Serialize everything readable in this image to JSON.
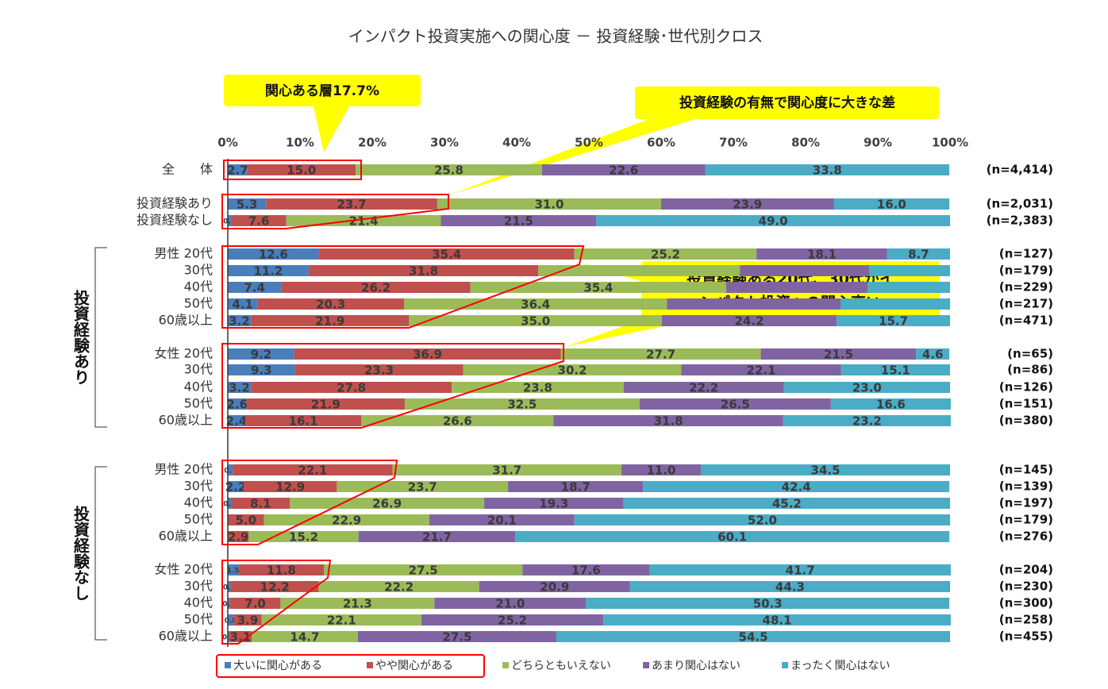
{
  "chart_data": {
    "type": "bar",
    "orientation": "horizontal",
    "stacked": true,
    "title": "インパクト投資実施への関心度 － 投資経験･世代別クロス",
    "categories": [
      "全　　体",
      "投資経験あり",
      "投資経験なし",
      "男性 20代",
      "30代",
      "40代",
      "50代",
      "60歳以上",
      "女性 20代",
      "30代",
      "40代",
      "50代",
      "60歳以上",
      "男性 20代",
      "30代",
      "40代",
      "50代",
      "60歳以上",
      "女性 20代",
      "30代",
      "40代",
      "50代",
      "60歳以上"
    ],
    "sample_sizes": [
      "(n=4,414)",
      "(n=2,031)",
      "(n=2,383)",
      "(n=127)",
      "(n=179)",
      "(n=229)",
      "(n=217)",
      "(n=471)",
      "(n=65)",
      "(n=86)",
      "(n=126)",
      "(n=151)",
      "(n=380)",
      "(n=145)",
      "(n=139)",
      "(n=197)",
      "(n=179)",
      "(n=276)",
      "(n=204)",
      "(n=230)",
      "(n=300)",
      "(n=258)",
      "(n=455)"
    ],
    "groups": [
      "投資経験あり",
      "投資経験なし"
    ],
    "annotations": {
      "interest": "関心ある層17.7%",
      "experience_gap": "投資経験の有無で関心度に大きな差",
      "young_investors": [
        "投資経験ある20代、30代がイ",
        "ンパクト投資への関心高い"
      ]
    },
    "xlim": [
      0,
      100
    ],
    "xticks": [
      {
        "value": 0,
        "label": "0%"
      },
      {
        "value": 10,
        "label": "10%"
      },
      {
        "value": 20,
        "label": "20%"
      },
      {
        "value": 30,
        "label": "30%"
      },
      {
        "value": 40,
        "label": "40%"
      },
      {
        "value": 50,
        "label": "50%"
      },
      {
        "value": 60,
        "label": "60%"
      },
      {
        "value": 70,
        "label": "70%"
      },
      {
        "value": 80,
        "label": "80%"
      },
      {
        "value": 90,
        "label": "90%"
      },
      {
        "value": 100,
        "label": "100%"
      }
    ],
    "legend": "bottom",
    "series": [
      {
        "name": "大いに関心がある",
        "color": "#4a7ebb",
        "values": [
          2.7,
          5.3,
          0.5,
          12.6,
          11.2,
          7.4,
          4.1,
          3.2,
          9.2,
          9.3,
          3.2,
          2.6,
          2.4,
          0.7,
          2.2,
          0.5,
          0,
          0,
          1.5,
          0.4,
          0.3,
          0.8,
          0.2
        ],
        "value_labels": [
          "2.7",
          "5.3",
          "0.5",
          "12.6",
          "11.2",
          "7.4",
          "4.1",
          "3.2",
          "9.2",
          "9.3",
          "3.2",
          "2.6",
          "2.4",
          "0.7",
          "2.2",
          "0.5",
          null,
          null,
          "1.5",
          "0.4",
          "0.3",
          "0.8",
          "0.2"
        ]
      },
      {
        "name": "やや関心がある",
        "color": "#c0504d",
        "values": [
          15.0,
          23.7,
          7.6,
          35.4,
          31.8,
          26.2,
          20.3,
          21.9,
          36.9,
          23.3,
          27.8,
          21.9,
          16.1,
          22.1,
          12.9,
          8.1,
          5.0,
          2.9,
          11.8,
          12.2,
          7.0,
          3.9,
          3.1
        ],
        "value_labels": [
          "15.0",
          "23.7",
          "7.6",
          "35.4",
          "31.8",
          "26.2",
          "20.3",
          "21.9",
          "36.9",
          "23.3",
          "27.8",
          "21.9",
          "16.1",
          "22.1",
          "12.9",
          "8.1",
          "5.0",
          "2.9",
          "11.8",
          "12.2",
          "7.0",
          "3.9",
          "3.1"
        ]
      },
      {
        "name": "どちらともいえない",
        "color": "#9bbb59",
        "values": [
          25.8,
          31.0,
          21.4,
          25.2,
          27.9,
          35.4,
          36.4,
          35.0,
          27.7,
          30.2,
          23.8,
          32.5,
          26.6,
          31.7,
          23.7,
          26.9,
          22.9,
          15.2,
          27.5,
          22.2,
          21.3,
          22.1,
          14.7
        ],
        "value_labels": [
          "25.8",
          "31.0",
          "21.4",
          "25.2",
          null,
          "35.4",
          "36.4",
          "35.0",
          "27.7",
          "30.2",
          "23.8",
          "32.5",
          "26.6",
          "31.7",
          "23.7",
          "26.9",
          "22.9",
          "15.2",
          "27.5",
          "22.2",
          "21.3",
          "22.1",
          "14.7"
        ]
      },
      {
        "name": "あまり関心はない",
        "color": "#8064a2",
        "values": [
          22.6,
          23.9,
          21.5,
          18.1,
          17.9,
          19.6,
          24.0,
          24.2,
          21.5,
          22.1,
          22.2,
          26.5,
          31.8,
          11.0,
          18.7,
          19.3,
          20.1,
          21.7,
          17.6,
          20.9,
          21.0,
          25.2,
          27.5
        ],
        "value_labels": [
          "22.6",
          "23.9",
          "21.5",
          "18.1",
          null,
          null,
          null,
          "24.2",
          "21.5",
          "22.1",
          "22.2",
          "26.5",
          "31.8",
          "11.0",
          "18.7",
          "19.3",
          "20.1",
          "21.7",
          "17.6",
          "20.9",
          "21.0",
          "25.2",
          "27.5"
        ]
      },
      {
        "name": "まったく関心はない",
        "color": "#4bacc6",
        "values": [
          33.8,
          16.0,
          49.0,
          8.7,
          11.2,
          11.4,
          15.2,
          15.7,
          4.6,
          15.1,
          23.0,
          16.6,
          23.2,
          34.5,
          42.4,
          45.2,
          52.0,
          60.1,
          41.7,
          44.3,
          50.3,
          48.1,
          54.5
        ],
        "value_labels": [
          "33.8",
          "16.0",
          "49.0",
          "8.7",
          null,
          null,
          null,
          "15.7",
          "4.6",
          "15.1",
          "23.0",
          "16.6",
          "23.2",
          "34.5",
          "42.4",
          "45.2",
          "52.0",
          "60.1",
          "41.7",
          "44.3",
          "50.3",
          "48.1",
          "54.5"
        ]
      }
    ]
  }
}
